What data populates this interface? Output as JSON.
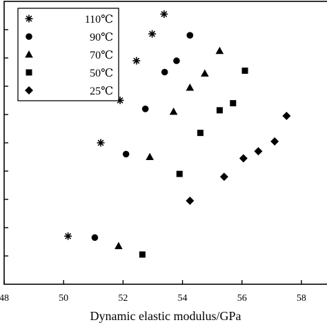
{
  "chart_data": {
    "type": "scatter",
    "xlabel": "Dynamic elastic modulus/GPa",
    "ylabel": "",
    "xlim": [
      48,
      59
    ],
    "ylim": [
      0,
      10
    ],
    "x_ticks": [
      "48",
      "50",
      "52",
      "54",
      "56",
      "58"
    ],
    "grid": false,
    "legend_placement": "top-left",
    "series": [
      {
        "name": "110℃",
        "marker": "asterisk",
        "points": [
          [
            50.15,
            1.7
          ],
          [
            51.25,
            5.0
          ],
          [
            51.9,
            6.5
          ],
          [
            52.45,
            7.9
          ],
          [
            52.98,
            8.85
          ],
          [
            53.38,
            9.55
          ]
        ]
      },
      {
        "name": "90℃",
        "marker": "circle",
        "points": [
          [
            51.05,
            1.65
          ],
          [
            52.1,
            4.6
          ],
          [
            52.75,
            6.2
          ],
          [
            53.4,
            7.5
          ],
          [
            53.8,
            7.9
          ],
          [
            54.25,
            8.8
          ]
        ]
      },
      {
        "name": "70℃",
        "marker": "triangle",
        "points": [
          [
            51.85,
            1.35
          ],
          [
            52.9,
            4.5
          ],
          [
            53.7,
            6.1
          ],
          [
            54.25,
            6.95
          ],
          [
            54.75,
            7.45
          ],
          [
            55.25,
            8.25
          ]
        ]
      },
      {
        "name": "50℃",
        "marker": "square",
        "points": [
          [
            52.65,
            1.05
          ],
          [
            53.9,
            3.9
          ],
          [
            54.6,
            5.35
          ],
          [
            55.25,
            6.15
          ],
          [
            55.7,
            6.4
          ],
          [
            56.1,
            7.55
          ]
        ]
      },
      {
        "name": "25℃",
        "marker": "diamond",
        "points": [
          [
            54.25,
            2.95
          ],
          [
            55.4,
            3.8
          ],
          [
            56.05,
            4.45
          ],
          [
            56.55,
            4.7
          ],
          [
            57.1,
            5.05
          ],
          [
            57.5,
            5.95
          ]
        ]
      }
    ]
  }
}
